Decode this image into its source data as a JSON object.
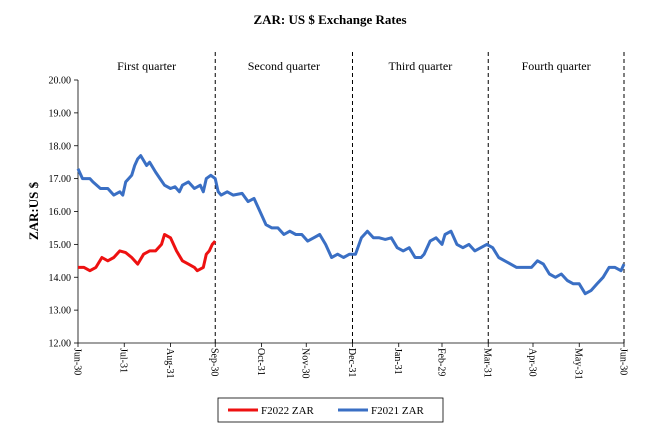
{
  "chart_data": {
    "type": "line",
    "title": "ZAR: US $ Exchange Rates",
    "y_label": "ZAR:US $",
    "annotations": [
      "First quarter",
      "Second quarter",
      "Third quarter",
      "Fourth quarter"
    ],
    "quarter_lines": [
      92,
      184,
      275,
      366
    ],
    "xlim": [
      0,
      366
    ],
    "xticks": [
      {
        "value": 0,
        "label": "Jun-30"
      },
      {
        "value": 31,
        "label": "Jul-31"
      },
      {
        "value": 62,
        "label": "Aug-31"
      },
      {
        "value": 92,
        "label": "Sep-30"
      },
      {
        "value": 123,
        "label": "Oct-31"
      },
      {
        "value": 153,
        "label": "Nov-30"
      },
      {
        "value": 184,
        "label": "Dec-31"
      },
      {
        "value": 215,
        "label": "Jan-31"
      },
      {
        "value": 244,
        "label": "Feb-29"
      },
      {
        "value": 275,
        "label": "Mar-31"
      },
      {
        "value": 305,
        "label": "Apr-30"
      },
      {
        "value": 336,
        "label": "May-31"
      },
      {
        "value": 366,
        "label": "Jun-30"
      }
    ],
    "ylim": [
      12,
      20
    ],
    "yticks": [
      {
        "value": 12,
        "label": "12.00"
      },
      {
        "value": 13,
        "label": "13.00"
      },
      {
        "value": 14,
        "label": "14.00"
      },
      {
        "value": 15,
        "label": "15.00"
      },
      {
        "value": 16,
        "label": "16.00"
      },
      {
        "value": 17,
        "label": "17.00"
      },
      {
        "value": 18,
        "label": "18.00"
      },
      {
        "value": 19,
        "label": "19.00"
      },
      {
        "value": 20,
        "label": "20.00"
      }
    ],
    "series": [
      {
        "name": "F2022 ZAR",
        "color": "#ee1111",
        "x": [
          0,
          4,
          8,
          12,
          16,
          20,
          24,
          28,
          32,
          36,
          40,
          44,
          48,
          52,
          56,
          58,
          62,
          66,
          70,
          74,
          78,
          80,
          84,
          86,
          88,
          90,
          92
        ],
        "values": [
          14.3,
          14.3,
          14.2,
          14.3,
          14.6,
          14.5,
          14.6,
          14.8,
          14.75,
          14.6,
          14.4,
          14.7,
          14.8,
          14.8,
          15.0,
          15.3,
          15.2,
          14.8,
          14.5,
          14.4,
          14.3,
          14.2,
          14.3,
          14.7,
          14.8,
          15.0,
          15.1
        ]
      },
      {
        "name": "F2021 ZAR",
        "color": "#3a6fc4",
        "x": [
          0,
          3,
          8,
          10,
          15,
          20,
          24,
          28,
          30,
          32,
          36,
          38,
          40,
          42,
          46,
          48,
          52,
          55,
          58,
          62,
          65,
          68,
          70,
          74,
          78,
          82,
          84,
          86,
          89,
          92,
          94,
          96,
          100,
          104,
          110,
          114,
          118,
          122,
          126,
          130,
          134,
          138,
          142,
          146,
          150,
          154,
          158,
          162,
          166,
          170,
          174,
          178,
          182,
          186,
          190,
          194,
          198,
          202,
          206,
          210,
          214,
          218,
          222,
          226,
          230,
          232,
          236,
          240,
          244,
          246,
          250,
          254,
          258,
          262,
          266,
          270,
          274,
          278,
          282,
          286,
          290,
          294,
          300,
          304,
          308,
          312,
          316,
          320,
          324,
          328,
          332,
          336,
          340,
          344,
          348,
          352,
          356,
          360,
          364,
          366
        ],
        "values": [
          17.3,
          17.0,
          17.0,
          16.9,
          16.7,
          16.7,
          16.5,
          16.6,
          16.5,
          16.9,
          17.1,
          17.4,
          17.6,
          17.7,
          17.4,
          17.5,
          17.2,
          17.0,
          16.8,
          16.7,
          16.75,
          16.6,
          16.8,
          16.9,
          16.7,
          16.8,
          16.6,
          17.0,
          17.1,
          17.0,
          16.6,
          16.5,
          16.6,
          16.5,
          16.55,
          16.3,
          16.4,
          16.0,
          15.6,
          15.5,
          15.5,
          15.3,
          15.4,
          15.3,
          15.3,
          15.1,
          15.2,
          15.3,
          15.0,
          14.6,
          14.7,
          14.6,
          14.7,
          14.7,
          15.2,
          15.4,
          15.2,
          15.2,
          15.15,
          15.2,
          14.9,
          14.8,
          14.9,
          14.6,
          14.6,
          14.7,
          15.1,
          15.2,
          15.0,
          15.3,
          15.4,
          15.0,
          14.9,
          15.0,
          14.8,
          14.9,
          15.0,
          14.9,
          14.6,
          14.5,
          14.4,
          14.3,
          14.3,
          14.3,
          14.5,
          14.4,
          14.1,
          14.0,
          14.1,
          13.9,
          13.8,
          13.8,
          13.5,
          13.6,
          13.8,
          14.0,
          14.3,
          14.3,
          14.2,
          14.4
        ]
      }
    ]
  }
}
